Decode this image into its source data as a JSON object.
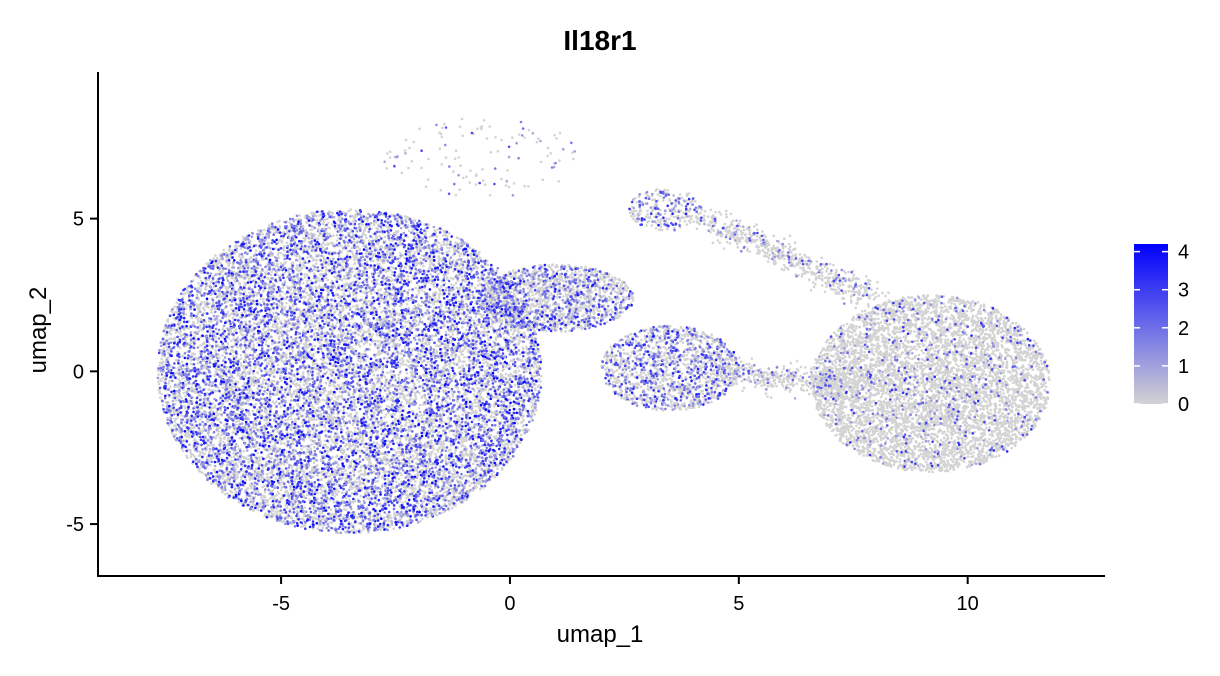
{
  "chart_data": {
    "type": "scatter",
    "title": "Il18r1",
    "xlabel": "umap_1",
    "ylabel": "umap_2",
    "xlim": [
      -9,
      13
    ],
    "ylim": [
      -6.7,
      9.8
    ],
    "x_ticks": [
      -5,
      0,
      5,
      10
    ],
    "y_ticks": [
      -5,
      0,
      5
    ],
    "x_tick_labels": [
      "-5",
      "0",
      "5",
      "10"
    ],
    "y_tick_labels": [
      "-5",
      "0",
      "5"
    ],
    "grid": false,
    "legend": {
      "placement": "right",
      "type": "colorbar",
      "min": 0,
      "max": 4.2,
      "ticks": [
        0,
        1,
        2,
        3,
        4
      ],
      "tick_labels": [
        "0",
        "1",
        "2",
        "3",
        "4"
      ]
    },
    "colors": {
      "low": "#d3d3d3",
      "high": "#0000ff"
    },
    "series": [
      {
        "cluster": "left-large",
        "shape": "ellipse",
        "center": [
          -3.5,
          0.0
        ],
        "radius": [
          4.2,
          5.3
        ],
        "points": 16000,
        "expressing_fraction": 0.42,
        "expression_range": [
          0.7,
          4.2
        ]
      },
      {
        "cluster": "upper-middle",
        "shape": "ellipse",
        "center": [
          1.0,
          2.4
        ],
        "radius": [
          1.7,
          1.1
        ],
        "points": 1600,
        "expressing_fraction": 0.32,
        "expression_range": [
          0.7,
          3.8
        ]
      },
      {
        "cluster": "center",
        "shape": "ellipse",
        "center": [
          3.5,
          0.1
        ],
        "radius": [
          1.5,
          1.4
        ],
        "points": 1400,
        "expressing_fraction": 0.38,
        "expression_range": [
          0.7,
          3.8
        ]
      },
      {
        "cluster": "top-small",
        "shape": "ellipse",
        "center": [
          3.4,
          5.3
        ],
        "radius": [
          0.8,
          0.7
        ],
        "points": 260,
        "expressing_fraction": 0.35,
        "expression_range": [
          0.7,
          3.6
        ]
      },
      {
        "cluster": "bridge-upper",
        "shape": "band",
        "from": [
          4.2,
          5.0
        ],
        "to": [
          8.0,
          2.4
        ],
        "width": 0.6,
        "points": 600,
        "expressing_fraction": 0.12,
        "expression_range": [
          0.7,
          3.0
        ]
      },
      {
        "cluster": "bridge-lower",
        "shape": "band",
        "from": [
          4.5,
          0.0
        ],
        "to": [
          7.5,
          -0.5
        ],
        "width": 0.7,
        "points": 450,
        "expressing_fraction": 0.18,
        "expression_range": [
          0.7,
          3.0
        ]
      },
      {
        "cluster": "right-large",
        "shape": "ellipse",
        "center": [
          9.2,
          -0.4
        ],
        "radius": [
          2.6,
          2.9
        ],
        "points": 6000,
        "expressing_fraction": 0.07,
        "expression_range": [
          0.7,
          3.5
        ]
      },
      {
        "cluster": "top-stray",
        "shape": "ellipse",
        "center": [
          -0.6,
          7.0
        ],
        "radius": [
          2.2,
          1.3
        ],
        "points": 120,
        "expressing_fraction": 0.2,
        "expression_range": [
          0.7,
          3.0
        ]
      }
    ]
  }
}
